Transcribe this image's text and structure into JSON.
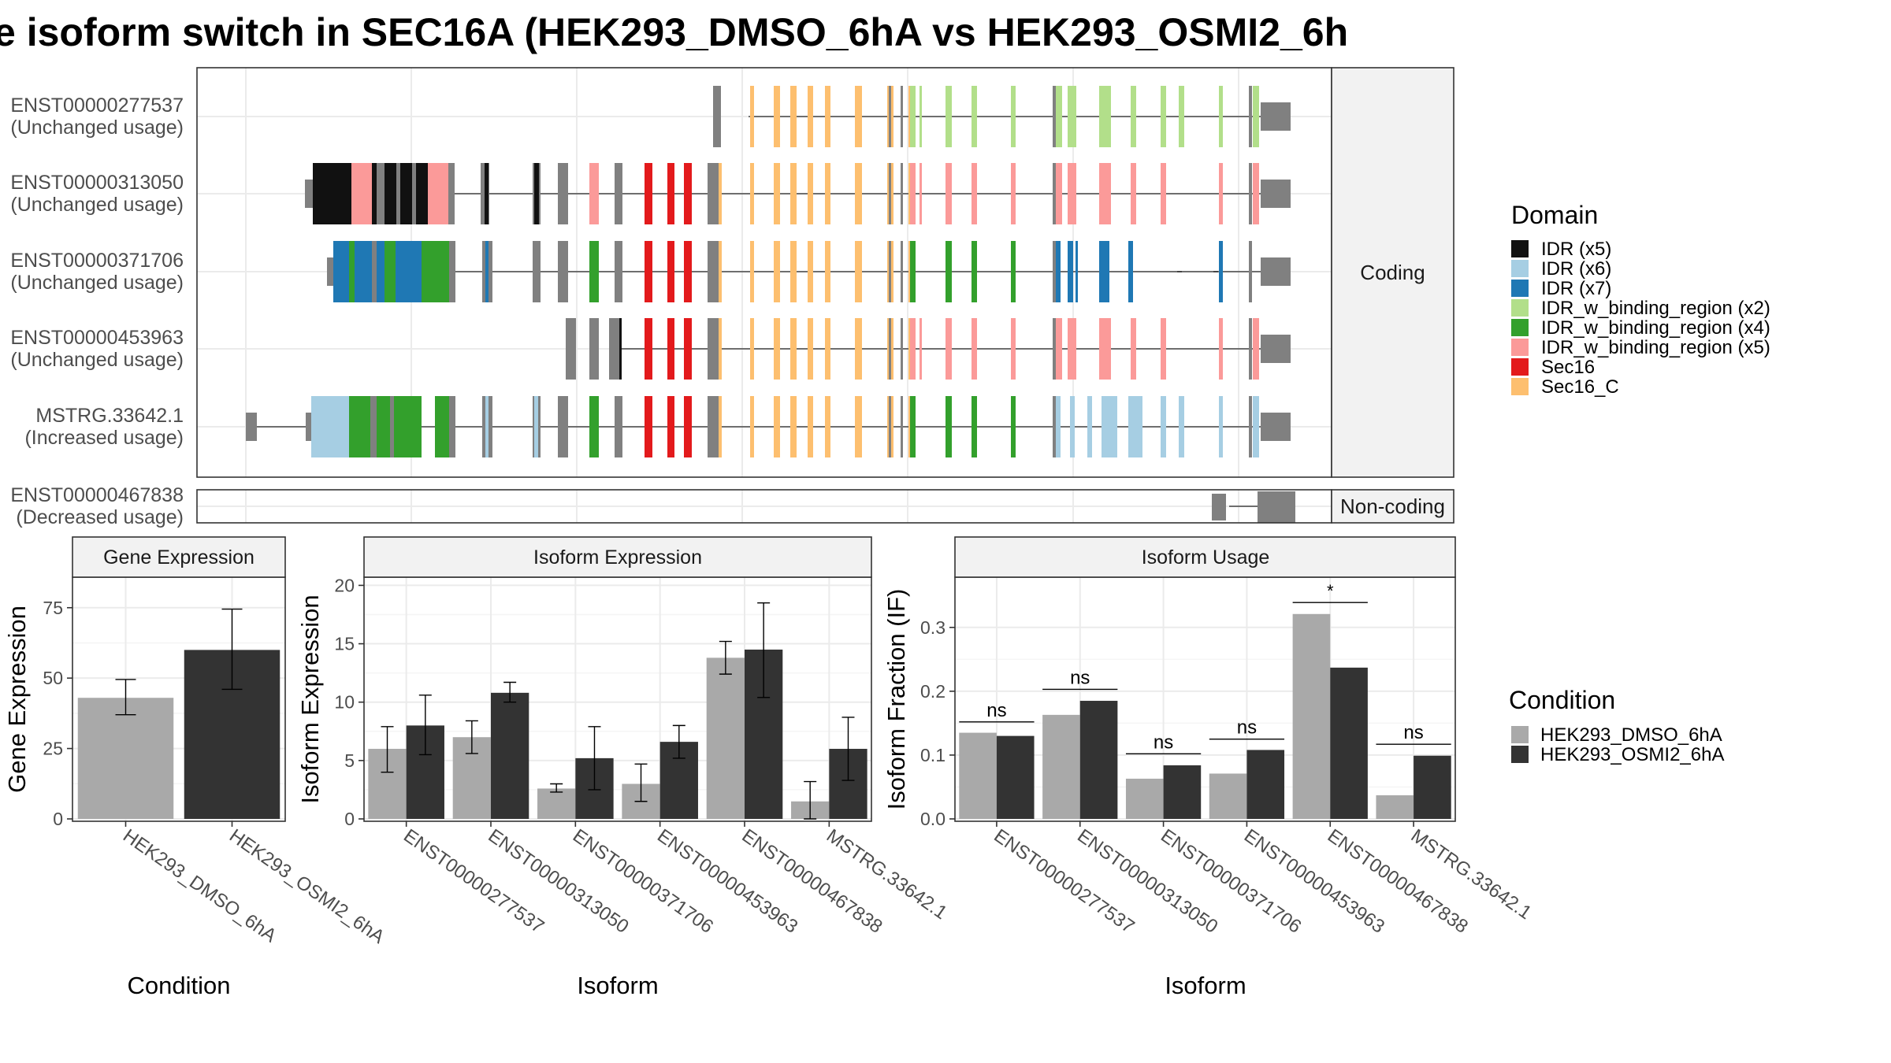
{
  "title": "e isoform switch in SEC16A (HEK293_DMSO_6hA vs HEK293_OSMI2_6h",
  "structure": {
    "panels": [
      {
        "label": "Coding"
      },
      {
        "label": "Non-coding"
      }
    ],
    "isoforms": [
      {
        "id": "ENST00000277537",
        "usage": "(Unchanged usage)"
      },
      {
        "id": "ENST00000313050",
        "usage": "(Unchanged usage)"
      },
      {
        "id": "ENST00000371706",
        "usage": "(Unchanged usage)"
      },
      {
        "id": "ENST00000453963",
        "usage": "(Unchanged usage)"
      },
      {
        "id": "MSTRG.33642.1",
        "usage": "(Increased usage)"
      },
      {
        "id": "ENST00000467838",
        "usage": "(Decreased usage)"
      }
    ],
    "legend": {
      "title": "Domain",
      "items": [
        {
          "label": "IDR (x5)",
          "color": "#111111"
        },
        {
          "label": "IDR (x6)",
          "color": "#a6cee3"
        },
        {
          "label": "IDR (x7)",
          "color": "#1f78b4"
        },
        {
          "label": "IDR_w_binding_region (x2)",
          "color": "#b2df8a"
        },
        {
          "label": "IDR_w_binding_region (x4)",
          "color": "#33a02c"
        },
        {
          "label": "IDR_w_binding_region (x5)",
          "color": "#fb9a99"
        },
        {
          "label": "Sec16",
          "color": "#e31a1c"
        },
        {
          "label": "Sec16_C",
          "color": "#fdbf6f"
        }
      ]
    }
  },
  "condition_legend": {
    "title": "Condition",
    "items": [
      {
        "label": "HEK293_DMSO_6hA",
        "color": "#a9a9a9"
      },
      {
        "label": "HEK293_OSMI2_6hA",
        "color": "#333333"
      }
    ]
  },
  "chart_data": [
    {
      "type": "bar",
      "title": "Gene Expression",
      "xlabel": "Condition",
      "ylabel": "Gene Expression",
      "ylim": [
        0,
        85
      ],
      "yticks": [
        0,
        25,
        50,
        75
      ],
      "categories": [
        "HEK293_DMSO_6hA",
        "HEK293_OSMI2_6hA"
      ],
      "values": [
        43,
        60
      ],
      "errors": [
        [
          37,
          49.5
        ],
        [
          46,
          74.5
        ]
      ]
    },
    {
      "type": "bar",
      "title": "Isoform Expression",
      "xlabel": "Isoform",
      "ylabel": "Isoform Expression",
      "ylim": [
        0,
        20.5
      ],
      "yticks": [
        0,
        5,
        10,
        15,
        20
      ],
      "categories": [
        "ENST00000277537",
        "ENST00000313050",
        "ENST00000371706",
        "ENST00000453963",
        "ENST00000467838",
        "MSTRG.33642.1"
      ],
      "series": [
        {
          "name": "HEK293_DMSO_6hA",
          "values": [
            6.0,
            7.0,
            2.6,
            3.0,
            13.8,
            1.5
          ],
          "errors": [
            [
              4.0,
              7.9
            ],
            [
              5.6,
              8.4
            ],
            [
              2.3,
              3.0
            ],
            [
              1.5,
              4.7
            ],
            [
              12.4,
              15.2
            ],
            [
              0.0,
              3.2
            ]
          ]
        },
        {
          "name": "HEK293_OSMI2_6hA",
          "values": [
            8.0,
            10.8,
            5.2,
            6.6,
            14.5,
            6.0
          ],
          "errors": [
            [
              5.5,
              10.6
            ],
            [
              10.0,
              11.7
            ],
            [
              2.5,
              7.9
            ],
            [
              5.2,
              8.0
            ],
            [
              10.4,
              18.5
            ],
            [
              3.3,
              8.7
            ]
          ]
        }
      ]
    },
    {
      "type": "bar",
      "title": "Isoform Usage",
      "xlabel": "Isoform",
      "ylabel": "Isoform Fraction (IF)",
      "ylim": [
        0,
        0.375
      ],
      "yticks": [
        0.0,
        0.1,
        0.2,
        0.3
      ],
      "ytick_labels": [
        "0.0",
        "0.1",
        "0.2",
        "0.3"
      ],
      "categories": [
        "ENST00000277537",
        "ENST00000313050",
        "ENST00000371706",
        "ENST00000453963",
        "ENST00000467838",
        "MSTRG.33642.1"
      ],
      "series": [
        {
          "name": "HEK293_DMSO_6hA",
          "values": [
            0.135,
            0.163,
            0.063,
            0.071,
            0.321,
            0.037
          ]
        },
        {
          "name": "HEK293_OSMI2_6hA",
          "values": [
            0.13,
            0.185,
            0.084,
            0.108,
            0.237,
            0.099
          ]
        }
      ],
      "significance": [
        "ns",
        "ns",
        "ns",
        "ns",
        "*",
        "ns"
      ],
      "significance_values": [
        0.152,
        0.203,
        0.102,
        0.125,
        0.339,
        0.117
      ]
    }
  ]
}
